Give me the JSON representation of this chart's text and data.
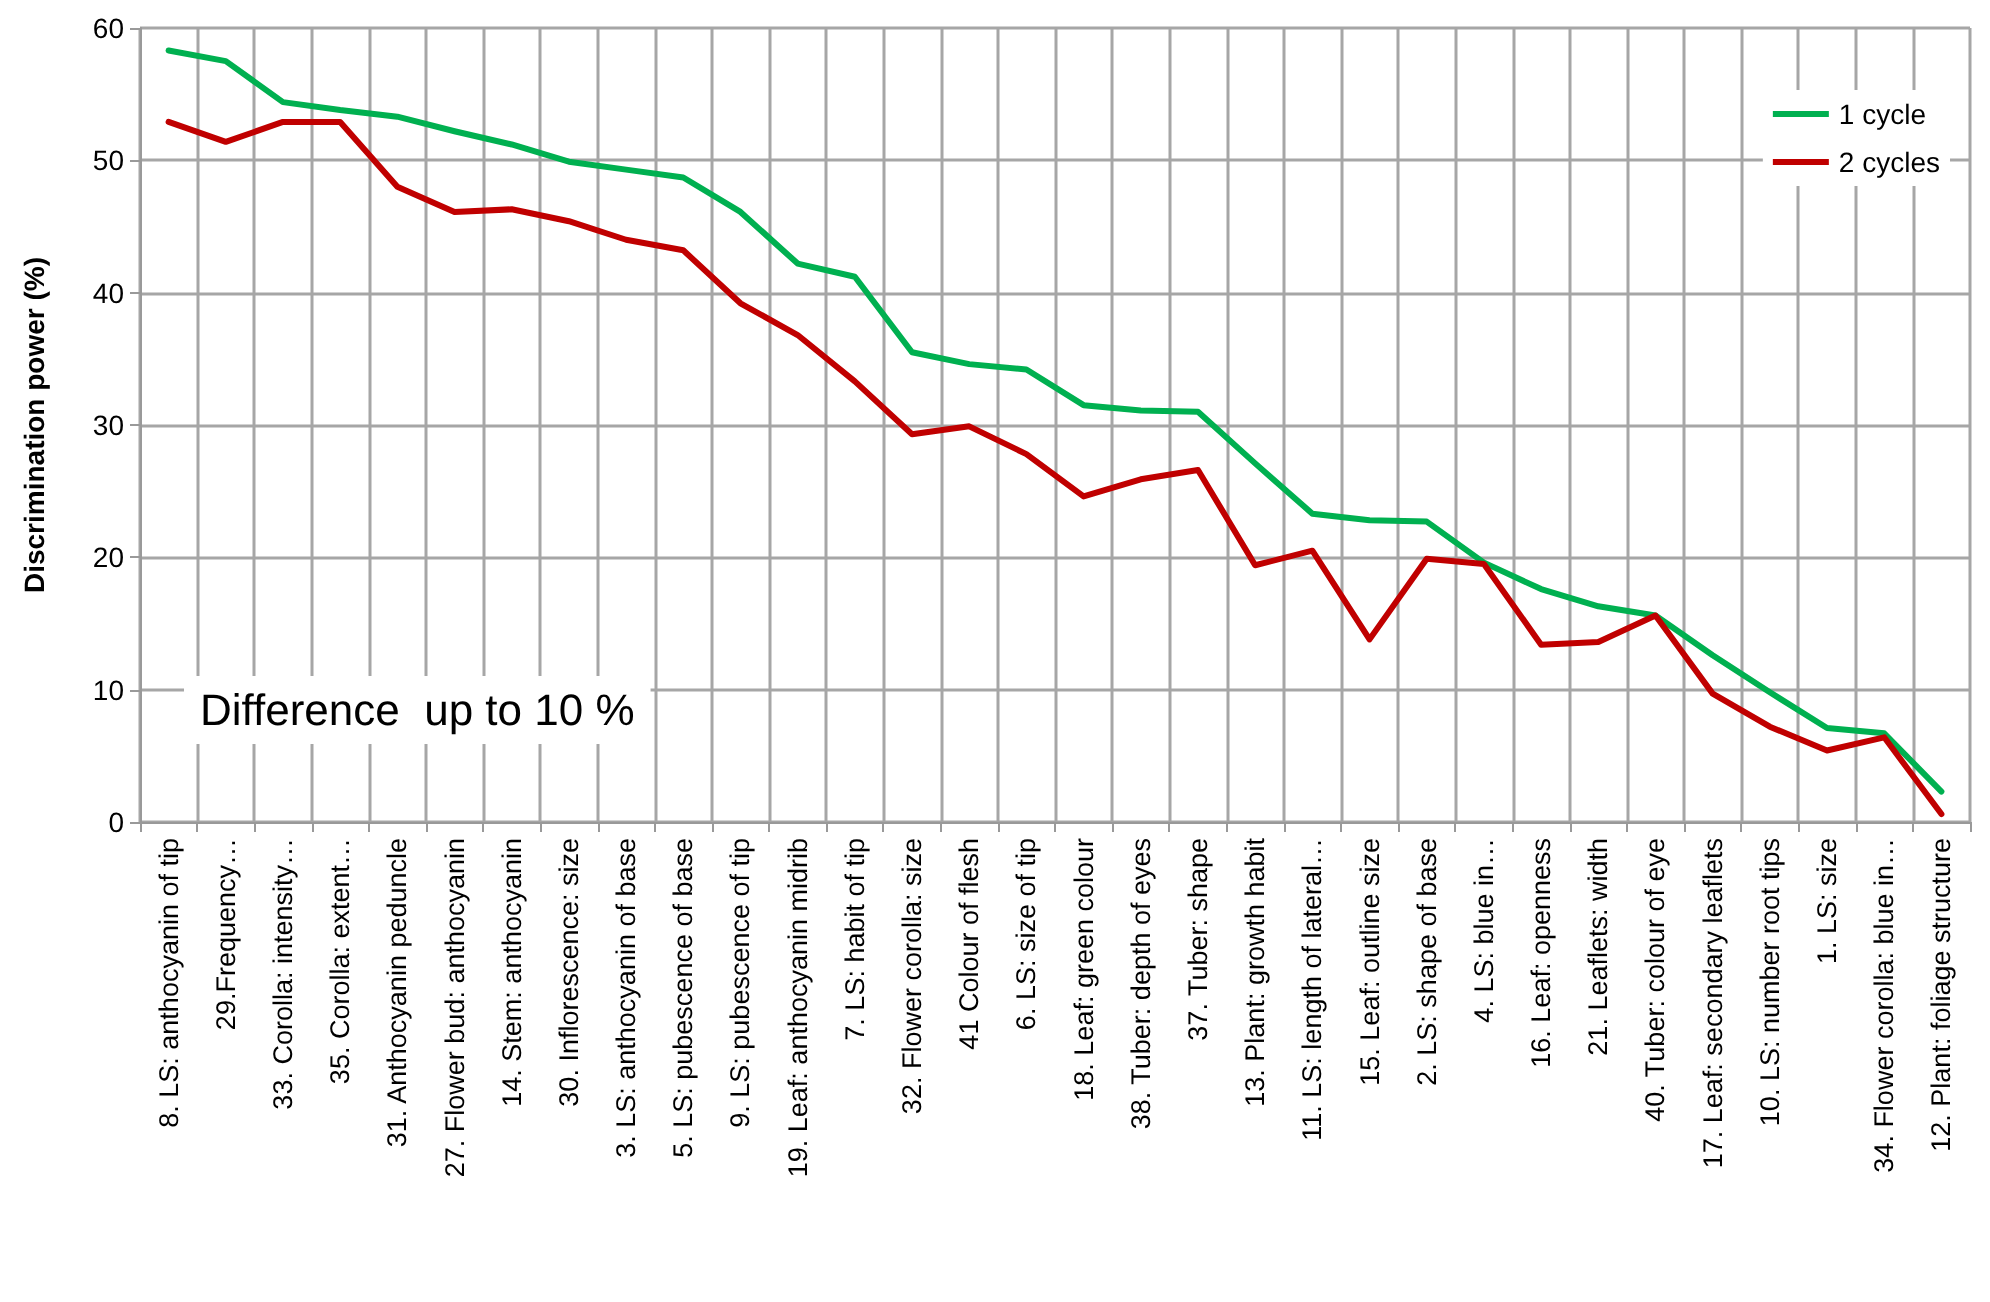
{
  "chart_data": {
    "type": "line",
    "ylabel": "Discrimination power (%)",
    "categories": [
      "8. LS: anthocyanin of tip",
      "29.Frequency…",
      "33. Corolla: intensity…",
      "35. Corolla: extent…",
      "31. Anthocyanin peduncle",
      "27. Flower bud: anthocyanin",
      "14. Stem: anthocyanin",
      "30. Inflorescence: size",
      "3. LS: anthocyanin of base",
      "5. LS: pubescence of base",
      "9. LS: pubescence of tip",
      "19. Leaf: anthocyanin midrib",
      "7. LS: habit of tip",
      "32. Flower corolla: size",
      "41 Colour of flesh",
      "6. LS: size of tip",
      "18. Leaf: green colour",
      "38. Tuber: depth of eyes",
      "37. Tuber: shape",
      "13. Plant: growth habit",
      "11. LS: length of lateral…",
      "15. Leaf: outline size",
      "2. LS: shape of base",
      "4. LS: blue in…",
      "16. Leaf: openness",
      "21. Leaflets: width",
      "40. Tuber: colour of eye",
      "17. Leaf: secondary leaflets",
      "10. LS: number root tips",
      "1. LS: size",
      "34. Flower corolla: blue in…",
      "12. Plant: foliage structure"
    ],
    "series": [
      {
        "name": "1 cycle",
        "color": "#00b050",
        "values": [
          58.3,
          57.5,
          54.4,
          53.8,
          53.3,
          52.2,
          51.2,
          49.9,
          49.3,
          48.7,
          46.1,
          42.2,
          41.2,
          35.5,
          34.6,
          34.2,
          31.5,
          31.1,
          31.0,
          27.1,
          23.3,
          22.8,
          22.7,
          19.6,
          17.6,
          16.3,
          15.6,
          12.6,
          9.8,
          7.1,
          6.7,
          2.3
        ]
      },
      {
        "name": "2 cycles",
        "color": "#c00000",
        "values": [
          52.9,
          51.4,
          52.9,
          52.9,
          48.0,
          46.1,
          46.3,
          45.4,
          44.0,
          43.2,
          39.2,
          36.8,
          33.3,
          29.3,
          29.9,
          27.8,
          24.6,
          25.9,
          26.6,
          19.4,
          20.5,
          13.8,
          19.9,
          19.5,
          13.4,
          13.6,
          15.6,
          9.7,
          7.2,
          5.4,
          6.4,
          0.6
        ]
      }
    ],
    "ylim": [
      0,
      60
    ],
    "yticks": [
      0,
      10,
      20,
      30,
      40,
      50,
      60
    ],
    "grid": true,
    "legend": "top right",
    "marker": "none",
    "line_style": "solid",
    "annotations": [
      "Difference  up to 10 %"
    ]
  }
}
